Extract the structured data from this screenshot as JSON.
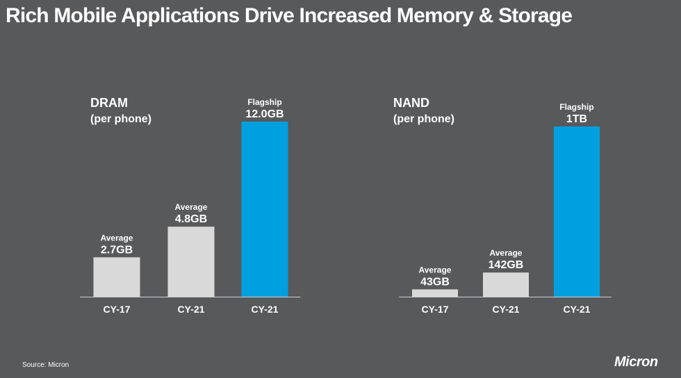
{
  "title": "Rich Mobile Applications Drive Increased Memory & Storage",
  "source": "Source: Micron",
  "logo_text": "Micron",
  "colors": {
    "background": "#58595b",
    "average_bar": "#d9d9da",
    "flagship_bar": "#00a0e0",
    "axis": "#cfcfcf"
  },
  "chart_data": [
    {
      "type": "bar",
      "title": "DRAM",
      "subtitle": "(per phone)",
      "categories": [
        "CY-17",
        "CY-21",
        "CY-21"
      ],
      "values": [
        2.7,
        4.8,
        12.0
      ],
      "unit": "GB",
      "bar_kind": [
        "Average",
        "Average",
        "Flagship"
      ],
      "value_labels": [
        "2.7GB",
        "4.8GB",
        "12.0GB"
      ],
      "ylim": [
        0,
        12.0
      ]
    },
    {
      "type": "bar",
      "title": "NAND",
      "subtitle": "(per phone)",
      "categories": [
        "CY-17",
        "CY-21",
        "CY-21"
      ],
      "values": [
        43,
        142,
        1000
      ],
      "unit": "GB",
      "bar_kind": [
        "Average",
        "Average",
        "Flagship"
      ],
      "value_labels": [
        "43GB",
        "142GB",
        "1TB"
      ],
      "ylim": [
        0,
        1000
      ]
    }
  ]
}
